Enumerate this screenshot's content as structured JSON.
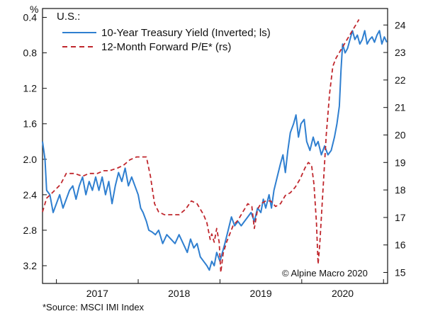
{
  "chart_data": {
    "type": "line",
    "subtitle": "U.S.:",
    "left_unit": "%",
    "credit": "© Alpine Macro 2020",
    "x_range": [
      2016.33,
      2020.55
    ],
    "x_ticks": [
      {
        "label": "2017",
        "value": 2017.0
      },
      {
        "label": "2018",
        "value": 2018.0
      },
      {
        "label": "2019",
        "value": 2019.0
      },
      {
        "label": "2020",
        "value": 2020.0
      }
    ],
    "x_year_boundaries": [
      2016.5,
      2017.5,
      2018.5,
      2019.5,
      2020.5
    ],
    "left_axis": {
      "inverted": true,
      "range": [
        0.3,
        3.4
      ],
      "ticks": [
        "0.4",
        "0.8",
        "1.2",
        "1.6",
        "2.0",
        "2.4",
        "2.8",
        "3.2"
      ]
    },
    "right_axis": {
      "range": [
        14.6,
        24.6
      ],
      "ticks": [
        "15",
        "16",
        "17",
        "18",
        "19",
        "20",
        "21",
        "22",
        "23",
        "24"
      ]
    },
    "colors": {
      "yield": "#2f7fd0",
      "pe": "#c0272d"
    },
    "series": [
      {
        "name": "10-Year Treasury Yield (Inverted; ls)",
        "axis": "left",
        "style": "solid",
        "points": [
          [
            2016.33,
            1.8
          ],
          [
            2016.36,
            2.0
          ],
          [
            2016.38,
            2.35
          ],
          [
            2016.42,
            2.4
          ],
          [
            2016.46,
            2.6
          ],
          [
            2016.5,
            2.5
          ],
          [
            2016.54,
            2.4
          ],
          [
            2016.58,
            2.55
          ],
          [
            2016.62,
            2.45
          ],
          [
            2016.66,
            2.35
          ],
          [
            2016.7,
            2.3
          ],
          [
            2016.74,
            2.45
          ],
          [
            2016.78,
            2.3
          ],
          [
            2016.82,
            2.2
          ],
          [
            2016.86,
            2.4
          ],
          [
            2016.9,
            2.25
          ],
          [
            2016.94,
            2.35
          ],
          [
            2016.98,
            2.2
          ],
          [
            2017.02,
            2.35
          ],
          [
            2017.06,
            2.2
          ],
          [
            2017.1,
            2.4
          ],
          [
            2017.14,
            2.25
          ],
          [
            2017.18,
            2.5
          ],
          [
            2017.22,
            2.3
          ],
          [
            2017.26,
            2.15
          ],
          [
            2017.3,
            2.25
          ],
          [
            2017.34,
            2.1
          ],
          [
            2017.38,
            2.3
          ],
          [
            2017.42,
            2.2
          ],
          [
            2017.46,
            2.3
          ],
          [
            2017.5,
            2.4
          ],
          [
            2017.53,
            2.55
          ],
          [
            2017.56,
            2.6
          ],
          [
            2017.6,
            2.7
          ],
          [
            2017.63,
            2.8
          ],
          [
            2017.67,
            2.82
          ],
          [
            2017.71,
            2.85
          ],
          [
            2017.75,
            2.8
          ],
          [
            2017.8,
            2.95
          ],
          [
            2017.85,
            2.85
          ],
          [
            2017.9,
            2.9
          ],
          [
            2017.95,
            2.95
          ],
          [
            2018.0,
            2.85
          ],
          [
            2018.05,
            2.95
          ],
          [
            2018.1,
            3.05
          ],
          [
            2018.14,
            2.9
          ],
          [
            2018.18,
            3.0
          ],
          [
            2018.22,
            2.95
          ],
          [
            2018.26,
            3.1
          ],
          [
            2018.3,
            3.15
          ],
          [
            2018.34,
            3.2
          ],
          [
            2018.37,
            3.25
          ],
          [
            2018.4,
            3.15
          ],
          [
            2018.43,
            3.2
          ],
          [
            2018.46,
            3.05
          ],
          [
            2018.5,
            3.15
          ],
          [
            2018.53,
            3.05
          ],
          [
            2018.56,
            2.95
          ],
          [
            2018.6,
            2.8
          ],
          [
            2018.64,
            2.65
          ],
          [
            2018.68,
            2.75
          ],
          [
            2018.72,
            2.7
          ],
          [
            2018.76,
            2.75
          ],
          [
            2018.8,
            2.7
          ],
          [
            2018.84,
            2.65
          ],
          [
            2018.88,
            2.6
          ],
          [
            2018.92,
            2.7
          ],
          [
            2018.96,
            2.55
          ],
          [
            2019.0,
            2.6
          ],
          [
            2019.03,
            2.45
          ],
          [
            2019.06,
            2.55
          ],
          [
            2019.1,
            2.4
          ],
          [
            2019.13,
            2.55
          ],
          [
            2019.16,
            2.35
          ],
          [
            2019.2,
            2.2
          ],
          [
            2019.24,
            2.05
          ],
          [
            2019.27,
            1.95
          ],
          [
            2019.3,
            2.15
          ],
          [
            2019.33,
            1.9
          ],
          [
            2019.36,
            1.7
          ],
          [
            2019.4,
            1.6
          ],
          [
            2019.43,
            1.5
          ],
          [
            2019.46,
            1.75
          ],
          [
            2019.49,
            1.6
          ],
          [
            2019.53,
            1.55
          ],
          [
            2019.56,
            1.8
          ],
          [
            2019.6,
            1.9
          ],
          [
            2019.64,
            1.75
          ],
          [
            2019.67,
            1.85
          ],
          [
            2019.7,
            1.8
          ],
          [
            2019.74,
            1.95
          ],
          [
            2019.78,
            1.85
          ],
          [
            2019.82,
            1.95
          ],
          [
            2019.86,
            1.9
          ],
          [
            2019.9,
            1.75
          ],
          [
            2019.93,
            1.6
          ],
          [
            2019.96,
            1.4
          ],
          [
            2019.98,
            1.0
          ],
          [
            2020.0,
            0.7
          ],
          [
            2020.03,
            0.8
          ],
          [
            2020.06,
            0.75
          ],
          [
            2020.09,
            0.65
          ],
          [
            2020.12,
            0.55
          ],
          [
            2020.15,
            0.65
          ],
          [
            2020.18,
            0.6
          ],
          [
            2020.21,
            0.7
          ],
          [
            2020.24,
            0.65
          ],
          [
            2020.27,
            0.55
          ],
          [
            2020.3,
            0.7
          ],
          [
            2020.33,
            0.65
          ],
          [
            2020.36,
            0.62
          ],
          [
            2020.39,
            0.68
          ],
          [
            2020.42,
            0.6
          ],
          [
            2020.45,
            0.55
          ],
          [
            2020.48,
            0.7
          ],
          [
            2020.51,
            0.62
          ],
          [
            2020.54,
            0.68
          ]
        ]
      },
      {
        "name": "12-Month Forward P/E* (rs)",
        "axis": "right",
        "style": "dashed",
        "points": [
          [
            2016.33,
            17.2
          ],
          [
            2016.38,
            17.7
          ],
          [
            2016.45,
            17.9
          ],
          [
            2016.55,
            18.2
          ],
          [
            2016.62,
            18.6
          ],
          [
            2016.72,
            18.6
          ],
          [
            2016.82,
            18.5
          ],
          [
            2016.9,
            18.6
          ],
          [
            2017.0,
            18.6
          ],
          [
            2017.08,
            18.7
          ],
          [
            2017.15,
            18.7
          ],
          [
            2017.25,
            18.8
          ],
          [
            2017.32,
            18.9
          ],
          [
            2017.4,
            19.1
          ],
          [
            2017.48,
            19.2
          ],
          [
            2017.55,
            19.2
          ],
          [
            2017.6,
            19.2
          ],
          [
            2017.65,
            18.5
          ],
          [
            2017.7,
            17.5
          ],
          [
            2017.75,
            17.2
          ],
          [
            2017.82,
            17.1
          ],
          [
            2017.9,
            17.1
          ],
          [
            2018.0,
            17.1
          ],
          [
            2018.08,
            17.3
          ],
          [
            2018.15,
            17.6
          ],
          [
            2018.22,
            17.5
          ],
          [
            2018.3,
            17.1
          ],
          [
            2018.34,
            16.8
          ],
          [
            2018.38,
            16.2
          ],
          [
            2018.4,
            16.4
          ],
          [
            2018.43,
            16.1
          ],
          [
            2018.46,
            16.6
          ],
          [
            2018.49,
            16.1
          ],
          [
            2018.51,
            15.0
          ],
          [
            2018.54,
            15.7
          ],
          [
            2018.58,
            16.1
          ],
          [
            2018.62,
            16.4
          ],
          [
            2018.66,
            16.7
          ],
          [
            2018.72,
            16.9
          ],
          [
            2018.78,
            17.2
          ],
          [
            2018.84,
            17.5
          ],
          [
            2018.89,
            17.4
          ],
          [
            2018.92,
            16.6
          ],
          [
            2018.96,
            17.3
          ],
          [
            2019.0,
            17.5
          ],
          [
            2019.06,
            17.6
          ],
          [
            2019.12,
            17.6
          ],
          [
            2019.18,
            17.4
          ],
          [
            2019.24,
            17.5
          ],
          [
            2019.3,
            17.8
          ],
          [
            2019.36,
            17.9
          ],
          [
            2019.42,
            18.1
          ],
          [
            2019.48,
            18.4
          ],
          [
            2019.54,
            18.8
          ],
          [
            2019.58,
            19.0
          ],
          [
            2019.62,
            18.9
          ],
          [
            2019.65,
            18.2
          ],
          [
            2019.68,
            16.8
          ],
          [
            2019.7,
            15.3
          ],
          [
            2019.72,
            16.0
          ],
          [
            2019.76,
            18.0
          ],
          [
            2019.8,
            20.0
          ],
          [
            2019.84,
            21.5
          ],
          [
            2019.88,
            22.5
          ],
          [
            2019.92,
            22.8
          ],
          [
            2019.96,
            23.0
          ],
          [
            2020.0,
            23.2
          ],
          [
            2020.04,
            23.4
          ],
          [
            2020.08,
            23.6
          ],
          [
            2020.12,
            23.8
          ],
          [
            2020.16,
            24.0
          ],
          [
            2020.2,
            24.2
          ]
        ]
      }
    ],
    "legend": {
      "position": "top-left"
    }
  },
  "source_note": "*Source: MSCI IMI Index"
}
